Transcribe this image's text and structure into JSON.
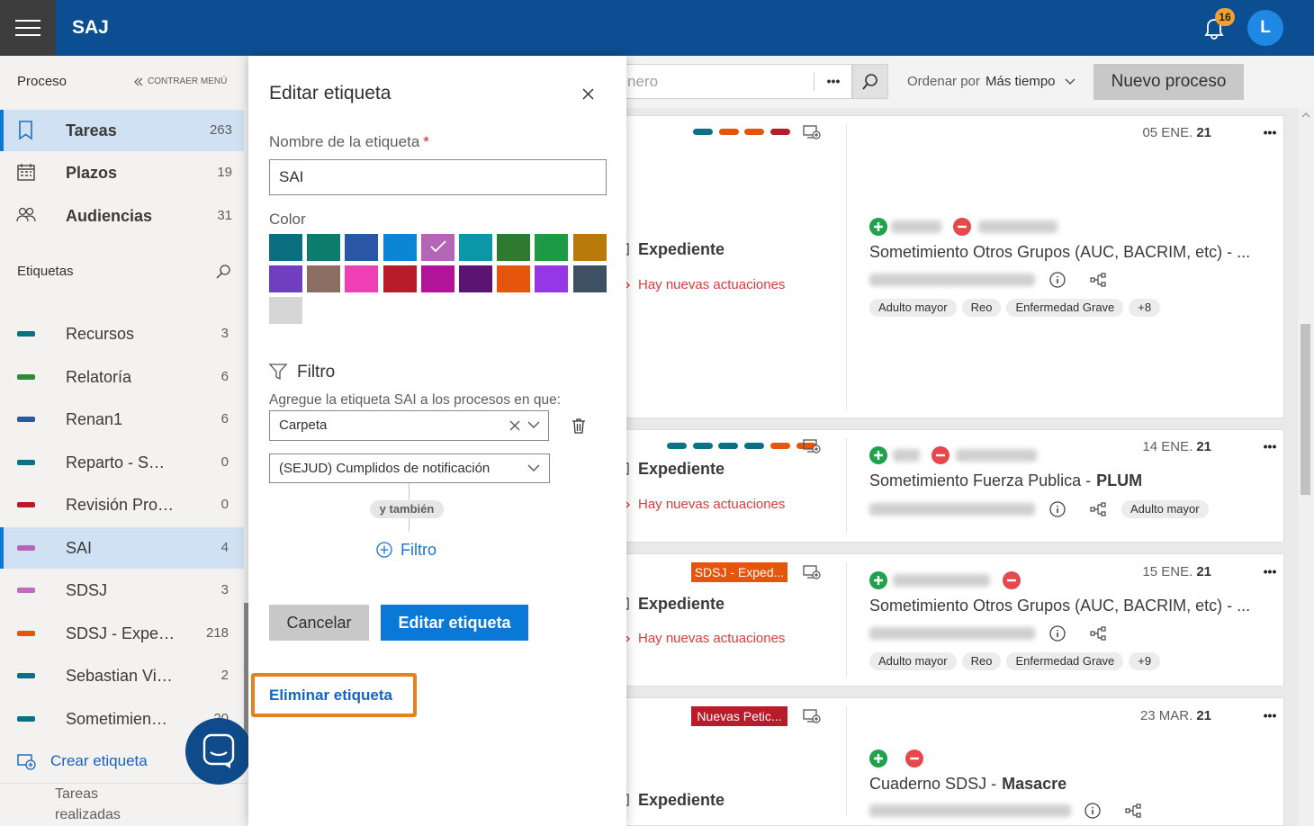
{
  "header": {
    "app_name": "SAJ",
    "notifications": 16,
    "avatar": "L"
  },
  "sidebar": {
    "section": "Proceso",
    "collapse": "CONTRAER MENÚ",
    "nav": [
      {
        "label": "Tareas",
        "count": 263,
        "selected": true
      },
      {
        "label": "Plazos",
        "count": 19
      },
      {
        "label": "Audiencias",
        "count": 31
      }
    ],
    "tags_title": "Etiquetas",
    "tags": [
      {
        "label": "Recursos",
        "count": 3,
        "color": "#0b7285"
      },
      {
        "label": "Relatoría",
        "count": 6,
        "color": "#2e8b3a"
      },
      {
        "label": "Renan1",
        "count": 6,
        "color": "#2b55a6"
      },
      {
        "label": "Reparto - S…",
        "count": 0,
        "color": "#0b7285"
      },
      {
        "label": "Revisión Pro…",
        "count": 0,
        "color": "#b71c28"
      },
      {
        "label": "SAI",
        "count": 4,
        "color": "#b565b5",
        "selected": true
      },
      {
        "label": "SDSJ",
        "count": 3,
        "color": "#c06cc0"
      },
      {
        "label": "SDSJ - Expe…",
        "count": 218,
        "color": "#e5560c"
      },
      {
        "label": "Sebastian Vi…",
        "count": 2,
        "color": "#0b7285"
      },
      {
        "label": "Sometimien…",
        "count": 20,
        "color": "#0b7285"
      }
    ],
    "create_tag": "Crear etiqueta",
    "done_tasks": "Tareas realizadas"
  },
  "dialog": {
    "title": "Editar etiqueta",
    "name_label": "Nombre de la etiqueta",
    "required": "*",
    "name_value": "SAI",
    "color_label": "Color",
    "colors": [
      "#0b6e7f",
      "#0c7d6c",
      "#2b55a6",
      "#0a86d4",
      "#b565b5",
      "#0a97a8",
      "#2e7a30",
      "#1d9a45",
      "#b97a0a",
      "#6f3fbf",
      "#8d6e63",
      "#ef3fb4",
      "#b71c28",
      "#b3139b",
      "#5c1472",
      "#e5560c",
      "#9637e6",
      "#3e5164",
      "#d6d6d6"
    ],
    "selected_color": "#b565b5",
    "filter_title": "Filtro",
    "filter_description": "Agregue la etiqueta SAI a los procesos en que:",
    "filter_field": "Carpeta",
    "filter_value": "(SEJUD) Cumplidos de notificación",
    "connector": "y también",
    "add_filter": "Filtro",
    "cancel": "Cancelar",
    "submit": "Editar etiqueta",
    "delete": "Eliminar etiqueta"
  },
  "toolbar": {
    "search_placeholder": "nero",
    "more": "•••",
    "sort_label": "Ordenar por",
    "sort_value": "Más tiempo",
    "new_process": "Nuevo proceso"
  },
  "cards": [
    {
      "bars": [
        "#0b7285",
        "#e5560c",
        "#e5560c",
        "#b71c28"
      ],
      "kind": "Expediente",
      "notice": "Hay nuevas actuaciones",
      "date": "05 ENE.",
      "year": "21",
      "more": "•••",
      "title": "Sometimiento Otros Grupos (AUC, BACRIM, etc) - ...",
      "tags": [
        "Adulto mayor",
        "Reo",
        "Enfermedad Grave",
        "+8"
      ]
    },
    {
      "bars": [
        "#0b7285",
        "#0b7285",
        "#0b7285",
        "#0b7285",
        "#e5560c",
        "#e5560c"
      ],
      "kind": "Expediente",
      "notice": "Hay nuevas actuaciones",
      "date": "14 ENE.",
      "year": "21",
      "more": "•••",
      "title": "Sometimiento Fuerza Publica -",
      "title_bold": "PLUM",
      "tags": [
        "Adulto mayor"
      ]
    },
    {
      "badge": "SDSJ - Exped...",
      "badge_color": "#e5560c",
      "kind": "Expediente",
      "notice": "Hay nuevas actuaciones",
      "date": "15 ENE.",
      "year": "21",
      "more": "•••",
      "title": "Sometimiento Otros Grupos (AUC, BACRIM, etc) - ...",
      "tags": [
        "Adulto mayor",
        "Reo",
        "Enfermedad Grave",
        "+9"
      ]
    },
    {
      "badge": "Nuevas Petic...",
      "badge_color": "#b71c28",
      "kind": "Expediente",
      "date": "23 MAR.",
      "year": "21",
      "more": "•••",
      "title": "Cuaderno SDSJ -",
      "title_bold": "Masacre"
    }
  ]
}
